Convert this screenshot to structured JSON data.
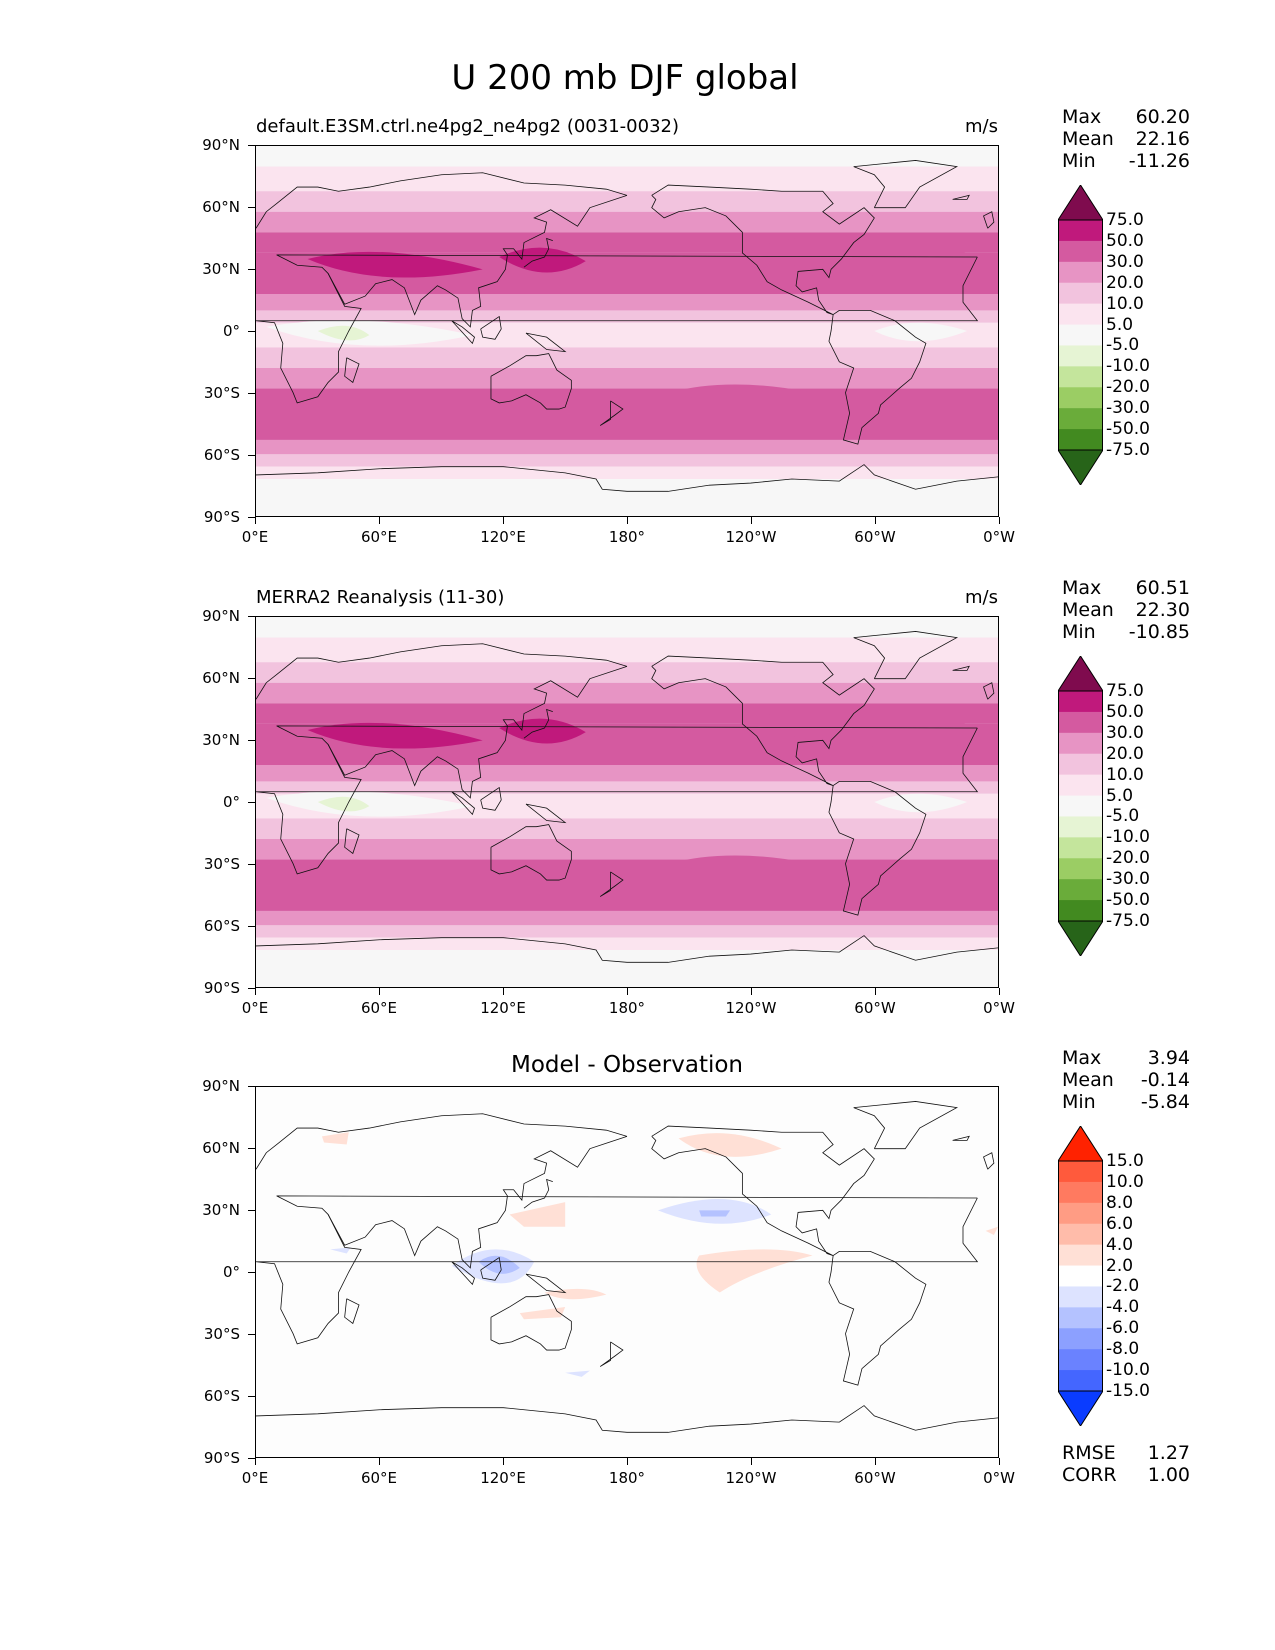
{
  "figure_title": "U 200 mb DJF global",
  "panels": [
    {
      "id": "test",
      "title_left": "default.E3SM.ctrl.ne4pg2_ne4pg2 (0031-0032)",
      "units": "m/s",
      "stats": {
        "Max": "60.20",
        "Mean": "22.16",
        "Min": "-11.26"
      },
      "colorbar_labels": [
        "75.0",
        "50.0",
        "30.0",
        "20.0",
        "10.0",
        "5.0",
        "-5.0",
        "-10.0",
        "-20.0",
        "-30.0",
        "-50.0",
        "-75.0"
      ]
    },
    {
      "id": "reference",
      "title_left": "MERRA2 Reanalysis (11-30)",
      "units": "m/s",
      "stats": {
        "Max": "60.51",
        "Mean": "22.30",
        "Min": "-10.85"
      },
      "colorbar_labels": [
        "75.0",
        "50.0",
        "30.0",
        "20.0",
        "10.0",
        "5.0",
        "-5.0",
        "-10.0",
        "-20.0",
        "-30.0",
        "-50.0",
        "-75.0"
      ]
    },
    {
      "id": "difference",
      "title_center": "Model - Observation",
      "stats": {
        "Max": "3.94",
        "Mean": "-0.14",
        "Min": "-5.84"
      },
      "colorbar_labels": [
        "15.0",
        "10.0",
        "8.0",
        "6.0",
        "4.0",
        "2.0",
        "-2.0",
        "-4.0",
        "-6.0",
        "-8.0",
        "-10.0",
        "-15.0"
      ],
      "metrics": {
        "RMSE": "1.27",
        "CORR": "1.00"
      }
    }
  ],
  "axes": {
    "lat_ticks": [
      "90°N",
      "60°N",
      "30°N",
      "0°",
      "30°S",
      "60°S",
      "90°S"
    ],
    "lon_ticks": [
      "0°E",
      "60°E",
      "120°E",
      "180°",
      "120°W",
      "60°W",
      "0°W"
    ]
  },
  "colors": {
    "field_scale": [
      "#7f0b4e",
      "#c0197c",
      "#d45aa0",
      "#e794c4",
      "#f2c3de",
      "#fbe4ef",
      "#f7f7f7",
      "#e6f4d4",
      "#c4e59c",
      "#9bcd64",
      "#6aac3a",
      "#428a20",
      "#276419"
    ],
    "diff_scale": [
      "#ff2200",
      "#ff5a3c",
      "#ff7a60",
      "#ff9c84",
      "#ffbcaa",
      "#ffe0d6",
      "#ffffff",
      "#dde3ff",
      "#b4c2ff",
      "#8ca0ff",
      "#6a82ff",
      "#4466ff",
      "#0a3cff"
    ]
  }
}
